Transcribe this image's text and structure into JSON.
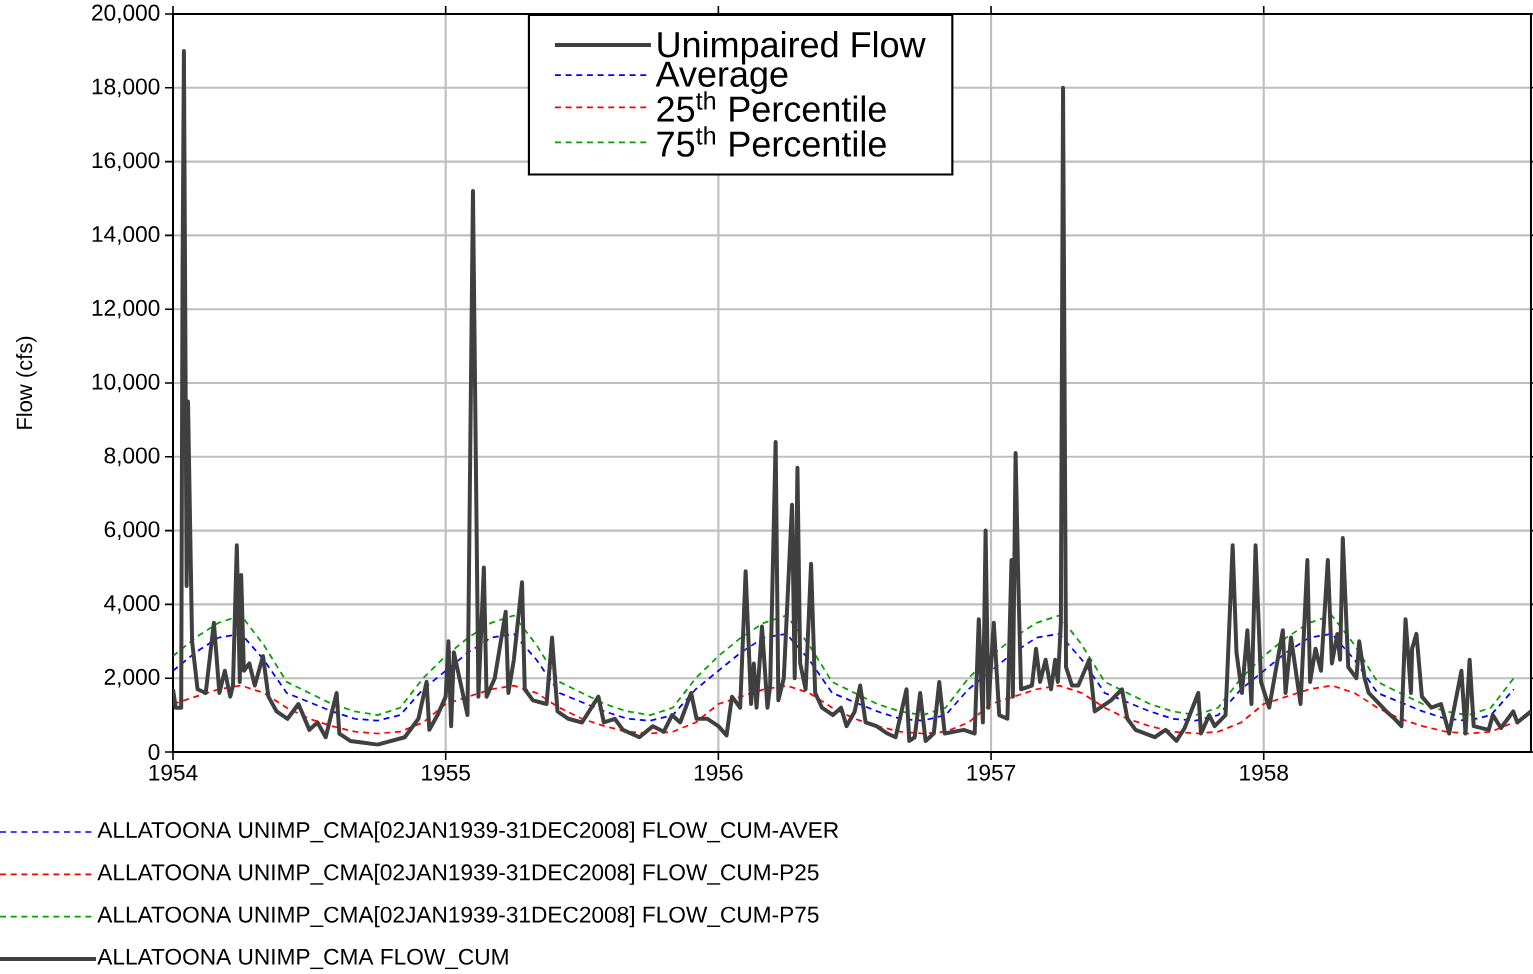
{
  "chart_data": {
    "type": "line",
    "ylabel": "Flow (cfs)",
    "xlim": [
      1954,
      1958.98
    ],
    "xticks": [
      1954,
      1955,
      1956,
      1957,
      1958
    ],
    "ylim": [
      0,
      20000
    ],
    "yticks": [
      {
        "value": 0,
        "label": "0"
      },
      {
        "value": 2000,
        "label": "2,000"
      },
      {
        "value": 4000,
        "label": "4,000"
      },
      {
        "value": 6000,
        "label": "6,000"
      },
      {
        "value": 8000,
        "label": "8,000"
      },
      {
        "value": 10000,
        "label": "10,000"
      },
      {
        "value": 12000,
        "label": "12,000"
      },
      {
        "value": 14000,
        "label": "14,000"
      },
      {
        "value": 16000,
        "label": "16,000"
      },
      {
        "value": 18000,
        "label": "18,000"
      },
      {
        "value": 20000,
        "label": "20,000"
      }
    ],
    "grid": true,
    "legend": "top",
    "x": [
      1954.0,
      1954.083,
      1954.167,
      1954.25,
      1954.333,
      1954.417,
      1954.5,
      1954.583,
      1954.667,
      1954.75,
      1954.833,
      1954.917,
      1955.0,
      1955.083,
      1955.167,
      1955.25,
      1955.333,
      1955.417,
      1955.5,
      1955.583,
      1955.667,
      1955.75,
      1955.833,
      1955.917,
      1956.0,
      1956.083,
      1956.167,
      1956.25,
      1956.333,
      1956.417,
      1956.5,
      1956.583,
      1956.667,
      1956.75,
      1956.833,
      1956.917,
      1957.0,
      1957.083,
      1957.167,
      1957.25,
      1957.333,
      1957.417,
      1957.5,
      1957.583,
      1957.667,
      1957.75,
      1957.833,
      1957.917,
      1958.0,
      1958.083,
      1958.167,
      1958.25,
      1958.333,
      1958.417,
      1958.5,
      1958.583,
      1958.667,
      1958.75,
      1958.833,
      1958.917
    ],
    "series": [
      {
        "name": "Unimpaired Flow",
        "color": "#404040",
        "line_style": "solid",
        "x": [
          1954.0,
          1954.01,
          1954.03,
          1954.035,
          1954.04,
          1954.05,
          1954.055,
          1954.07,
          1954.09,
          1954.12,
          1954.15,
          1954.17,
          1954.19,
          1954.21,
          1954.22,
          1954.234,
          1954.245,
          1954.25,
          1954.26,
          1954.28,
          1954.3,
          1954.33,
          1954.35,
          1954.38,
          1954.42,
          1954.46,
          1954.5,
          1954.53,
          1954.56,
          1954.6,
          1954.61,
          1954.65,
          1954.7,
          1954.75,
          1954.8,
          1954.85,
          1954.9,
          1954.93,
          1954.94,
          1954.97,
          1955.0,
          1955.01,
          1955.02,
          1955.03,
          1955.08,
          1955.1,
          1955.12,
          1955.14,
          1955.15,
          1955.18,
          1955.22,
          1955.23,
          1955.25,
          1955.28,
          1955.29,
          1955.32,
          1955.37,
          1955.39,
          1955.41,
          1955.45,
          1955.5,
          1955.56,
          1955.58,
          1955.62,
          1955.65,
          1955.71,
          1955.76,
          1955.8,
          1955.83,
          1955.86,
          1955.9,
          1955.92,
          1955.96,
          1956.0,
          1956.03,
          1956.05,
          1956.08,
          1956.1,
          1956.12,
          1956.13,
          1956.14,
          1956.16,
          1956.18,
          1956.19,
          1956.21,
          1956.22,
          1956.24,
          1956.27,
          1956.28,
          1956.29,
          1956.3,
          1956.32,
          1956.34,
          1956.355,
          1956.38,
          1956.42,
          1956.45,
          1956.47,
          1956.5,
          1956.52,
          1956.54,
          1956.58,
          1956.62,
          1956.65,
          1956.69,
          1956.7,
          1956.72,
          1956.74,
          1956.76,
          1956.79,
          1956.81,
          1956.83,
          1956.9,
          1956.94,
          1956.955,
          1956.97,
          1956.98,
          1956.99,
          1957.01,
          1957.03,
          1957.06,
          1957.075,
          1957.08,
          1957.09,
          1957.1,
          1957.11,
          1957.15,
          1957.165,
          1957.18,
          1957.2,
          1957.22,
          1957.235,
          1957.245,
          1957.256,
          1957.264,
          1957.275,
          1957.297,
          1957.32,
          1957.36,
          1957.38,
          1957.44,
          1957.48,
          1957.5,
          1957.53,
          1957.6,
          1957.64,
          1957.68,
          1957.71,
          1957.76,
          1957.77,
          1957.8,
          1957.82,
          1957.86,
          1957.886,
          1957.9,
          1957.92,
          1957.94,
          1957.955,
          1957.97,
          1957.99,
          1958.02,
          1958.07,
          1958.08,
          1958.1,
          1958.135,
          1958.16,
          1958.17,
          1958.19,
          1958.21,
          1958.235,
          1958.25,
          1958.27,
          1958.28,
          1958.29,
          1958.31,
          1958.34,
          1958.35,
          1958.37,
          1958.385,
          1958.45,
          1958.48,
          1958.505,
          1958.52,
          1958.54,
          1958.544,
          1958.56,
          1958.58,
          1958.615,
          1958.65,
          1958.68,
          1958.725,
          1958.74,
          1958.755,
          1958.77,
          1958.825,
          1958.84,
          1958.87,
          1958.915,
          1958.93,
          1958.98
        ],
        "values": [
          1700,
          1200,
          1200,
          13000,
          19000,
          4500,
          9500,
          3000,
          1700,
          1600,
          3500,
          1600,
          2200,
          1500,
          1800,
          5600,
          1900,
          4800,
          2200,
          2400,
          1800,
          2600,
          1500,
          1100,
          900,
          1300,
          600,
          800,
          400,
          1600,
          500,
          300,
          250,
          200,
          300,
          400,
          900,
          1900,
          600,
          1000,
          1500,
          3000,
          700,
          2700,
          1000,
          15200,
          1500,
          5000,
          1500,
          2000,
          3800,
          1600,
          2500,
          4600,
          1700,
          1400,
          1300,
          3100,
          1100,
          900,
          800,
          1500,
          800,
          900,
          600,
          400,
          700,
          550,
          1000,
          800,
          1600,
          900,
          900,
          700,
          450,
          1500,
          1200,
          4900,
          1300,
          2400,
          1200,
          3400,
          1200,
          1800,
          8400,
          1400,
          2000,
          6700,
          2000,
          7700,
          2400,
          1700,
          5100,
          1600,
          1200,
          1000,
          1200,
          700,
          1100,
          1800,
          800,
          700,
          500,
          400,
          1700,
          300,
          400,
          1600,
          300,
          500,
          1900,
          500,
          600,
          500,
          3600,
          800,
          6000,
          1200,
          3500,
          1000,
          900,
          5200,
          1500,
          8100,
          4600,
          1700,
          1800,
          2800,
          1900,
          2500,
          1700,
          2500,
          1900,
          3500,
          18000,
          2300,
          1800,
          1800,
          2500,
          1100,
          1400,
          1700,
          900,
          600,
          400,
          600,
          300,
          650,
          1600,
          500,
          1000,
          700,
          1000,
          5600,
          2700,
          1600,
          3300,
          1300,
          5600,
          1900,
          1200,
          3300,
          1600,
          3100,
          1300,
          5200,
          1900,
          2800,
          2200,
          5200,
          2400,
          3200,
          2500,
          5800,
          2300,
          2000,
          3000,
          2000,
          1600,
          1100,
          900,
          700,
          3600,
          1600,
          2800,
          3200,
          1500,
          1200,
          1300,
          500,
          2200,
          500,
          2500,
          700,
          600,
          1000,
          650,
          1100,
          800,
          1100
        ]
      },
      {
        "name": "Average",
        "color": "#0000ff",
        "line_style": "dashed",
        "values": [
          2200,
          2700,
          3100,
          3200,
          2500,
          1600,
          1350,
          1100,
          900,
          850,
          1000,
          1700,
          2200,
          2700,
          3100,
          3200,
          2500,
          1600,
          1350,
          1100,
          900,
          850,
          1000,
          1700,
          2200,
          2700,
          3100,
          3200,
          2500,
          1600,
          1350,
          1100,
          900,
          850,
          1000,
          1700,
          2200,
          2700,
          3100,
          3200,
          2500,
          1600,
          1350,
          1100,
          900,
          850,
          1000,
          1700,
          2200,
          2700,
          3100,
          3200,
          2500,
          1600,
          1350,
          1100,
          900,
          850,
          1000,
          1700
        ]
      },
      {
        "name": "25$^{th}$ Percentile",
        "color": "#ff0000",
        "line_style": "dashed",
        "values": [
          1300,
          1500,
          1700,
          1800,
          1600,
          1200,
          900,
          700,
          550,
          500,
          550,
          800,
          1300,
          1500,
          1700,
          1800,
          1600,
          1200,
          900,
          700,
          550,
          500,
          550,
          800,
          1300,
          1500,
          1700,
          1800,
          1600,
          1200,
          900,
          700,
          550,
          500,
          550,
          800,
          1300,
          1500,
          1700,
          1800,
          1600,
          1200,
          900,
          700,
          550,
          500,
          550,
          800,
          1300,
          1500,
          1700,
          1800,
          1600,
          1200,
          900,
          700,
          550,
          500,
          550,
          800
        ]
      },
      {
        "name": "75$^{th}$ Percentile",
        "color": "#00a000",
        "line_style": "dashed",
        "values": [
          2600,
          3100,
          3500,
          3700,
          2900,
          1900,
          1600,
          1300,
          1100,
          1000,
          1200,
          2000,
          2600,
          3100,
          3500,
          3700,
          2900,
          1900,
          1600,
          1300,
          1100,
          1000,
          1200,
          2000,
          2600,
          3100,
          3500,
          3700,
          2900,
          1900,
          1600,
          1300,
          1100,
          1000,
          1200,
          2000,
          2600,
          3100,
          3500,
          3700,
          2900,
          1900,
          1600,
          1300,
          1100,
          1000,
          1200,
          2000,
          2600,
          3100,
          3500,
          3700,
          2900,
          1900,
          1600,
          1300,
          1100,
          1000,
          1200,
          2000
        ]
      }
    ],
    "annotations": [
      "ALLATOONA UNIMP_CMA[02JAN1939-31DEC2008] FLOW_CUM-AVER",
      "ALLATOONA UNIMP_CMA[02JAN1939-31DEC2008] FLOW_CUM-P25",
      "ALLATOONA UNIMP_CMA[02JAN1939-31DEC2008] FLOW_CUM-P75",
      "ALLATOONA UNIMP_CMA FLOW_CUM"
    ]
  }
}
